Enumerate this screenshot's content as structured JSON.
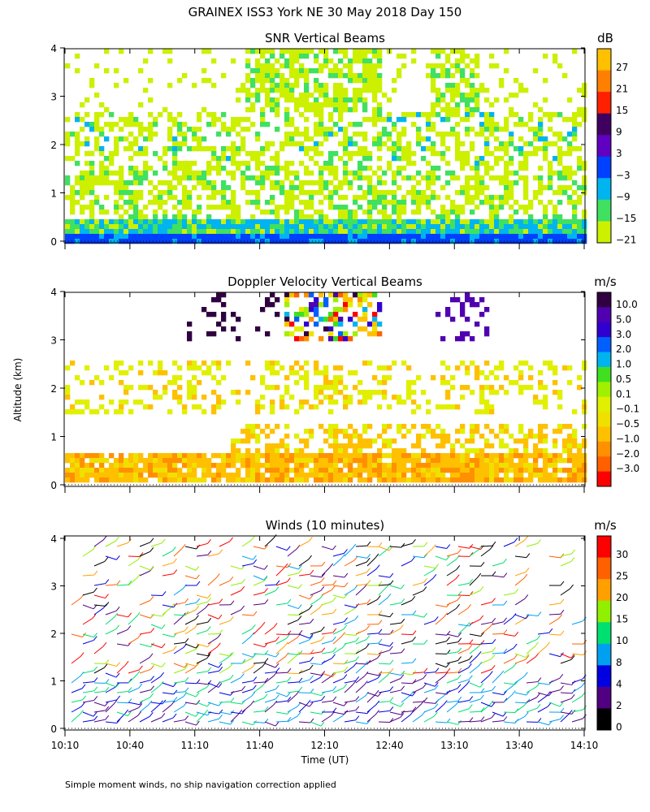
{
  "figure_title": "GRAINEX ISS3 York NE  30 May 2018 Day 150",
  "footnote": "Simple moment winds, no ship navigation correction applied",
  "shared_axes": {
    "ylabel": "Altitude (km)",
    "xlabel": "Time (UT)",
    "x_ticks": [
      "10:10",
      "10:40",
      "11:10",
      "11:40",
      "12:10",
      "12:40",
      "13:10",
      "13:40",
      "14:10"
    ],
    "y_ticks": [
      "0",
      "1",
      "2",
      "3",
      "4"
    ]
  },
  "colors": {
    "snr": [
      "#ccf000",
      "#40e060",
      "#00b4f0",
      "#0040ff",
      "#6000c0",
      "#400060",
      "#ff2000",
      "#ff8000",
      "#ffc000"
    ],
    "velocity": [
      "#ff0000",
      "#ff6000",
      "#ff9000",
      "#ffc000",
      "#f0e000",
      "#e0f000",
      "#a0f000",
      "#40e020",
      "#00b4f0",
      "#0060ff",
      "#3000d0",
      "#5000b0",
      "#300040"
    ],
    "winds": [
      "#000000",
      "#500080",
      "#0000e0",
      "#00a0f0",
      "#00e070",
      "#90f000",
      "#ffa000",
      "#ff6000",
      "#ff0000"
    ]
  },
  "chart_data": [
    {
      "type": "heatmap",
      "title": "SNR Vertical Beams",
      "colorbar_unit": "dB",
      "colorbar_labels": [
        "27",
        "21",
        "15",
        "9",
        "3",
        "−3",
        "−9",
        "−15",
        "−21"
      ],
      "x_range": [
        "10:10",
        "14:10"
      ],
      "ylim": [
        0,
        4
      ],
      "grid": false
    },
    {
      "type": "heatmap",
      "title": "Doppler Velocity Vertical Beams",
      "colorbar_unit": "m/s",
      "colorbar_labels": [
        "10.0",
        "5.0",
        "3.0",
        "2.0",
        "1.0",
        "0.5",
        "0.1",
        "−0.1",
        "−0.5",
        "−1.0",
        "−2.0",
        "−3.0"
      ],
      "x_range": [
        "10:10",
        "14:10"
      ],
      "ylim": [
        0,
        4
      ],
      "grid": false
    },
    {
      "type": "scatter",
      "title": "Winds (10 minutes)",
      "colorbar_unit": "m/s",
      "colorbar_labels": [
        "30",
        "25",
        "20",
        "15",
        "10",
        "8",
        "4",
        "2",
        "0"
      ],
      "x_range": [
        "10:10",
        "14:10"
      ],
      "ylim": [
        0,
        4
      ],
      "grid": false
    }
  ]
}
